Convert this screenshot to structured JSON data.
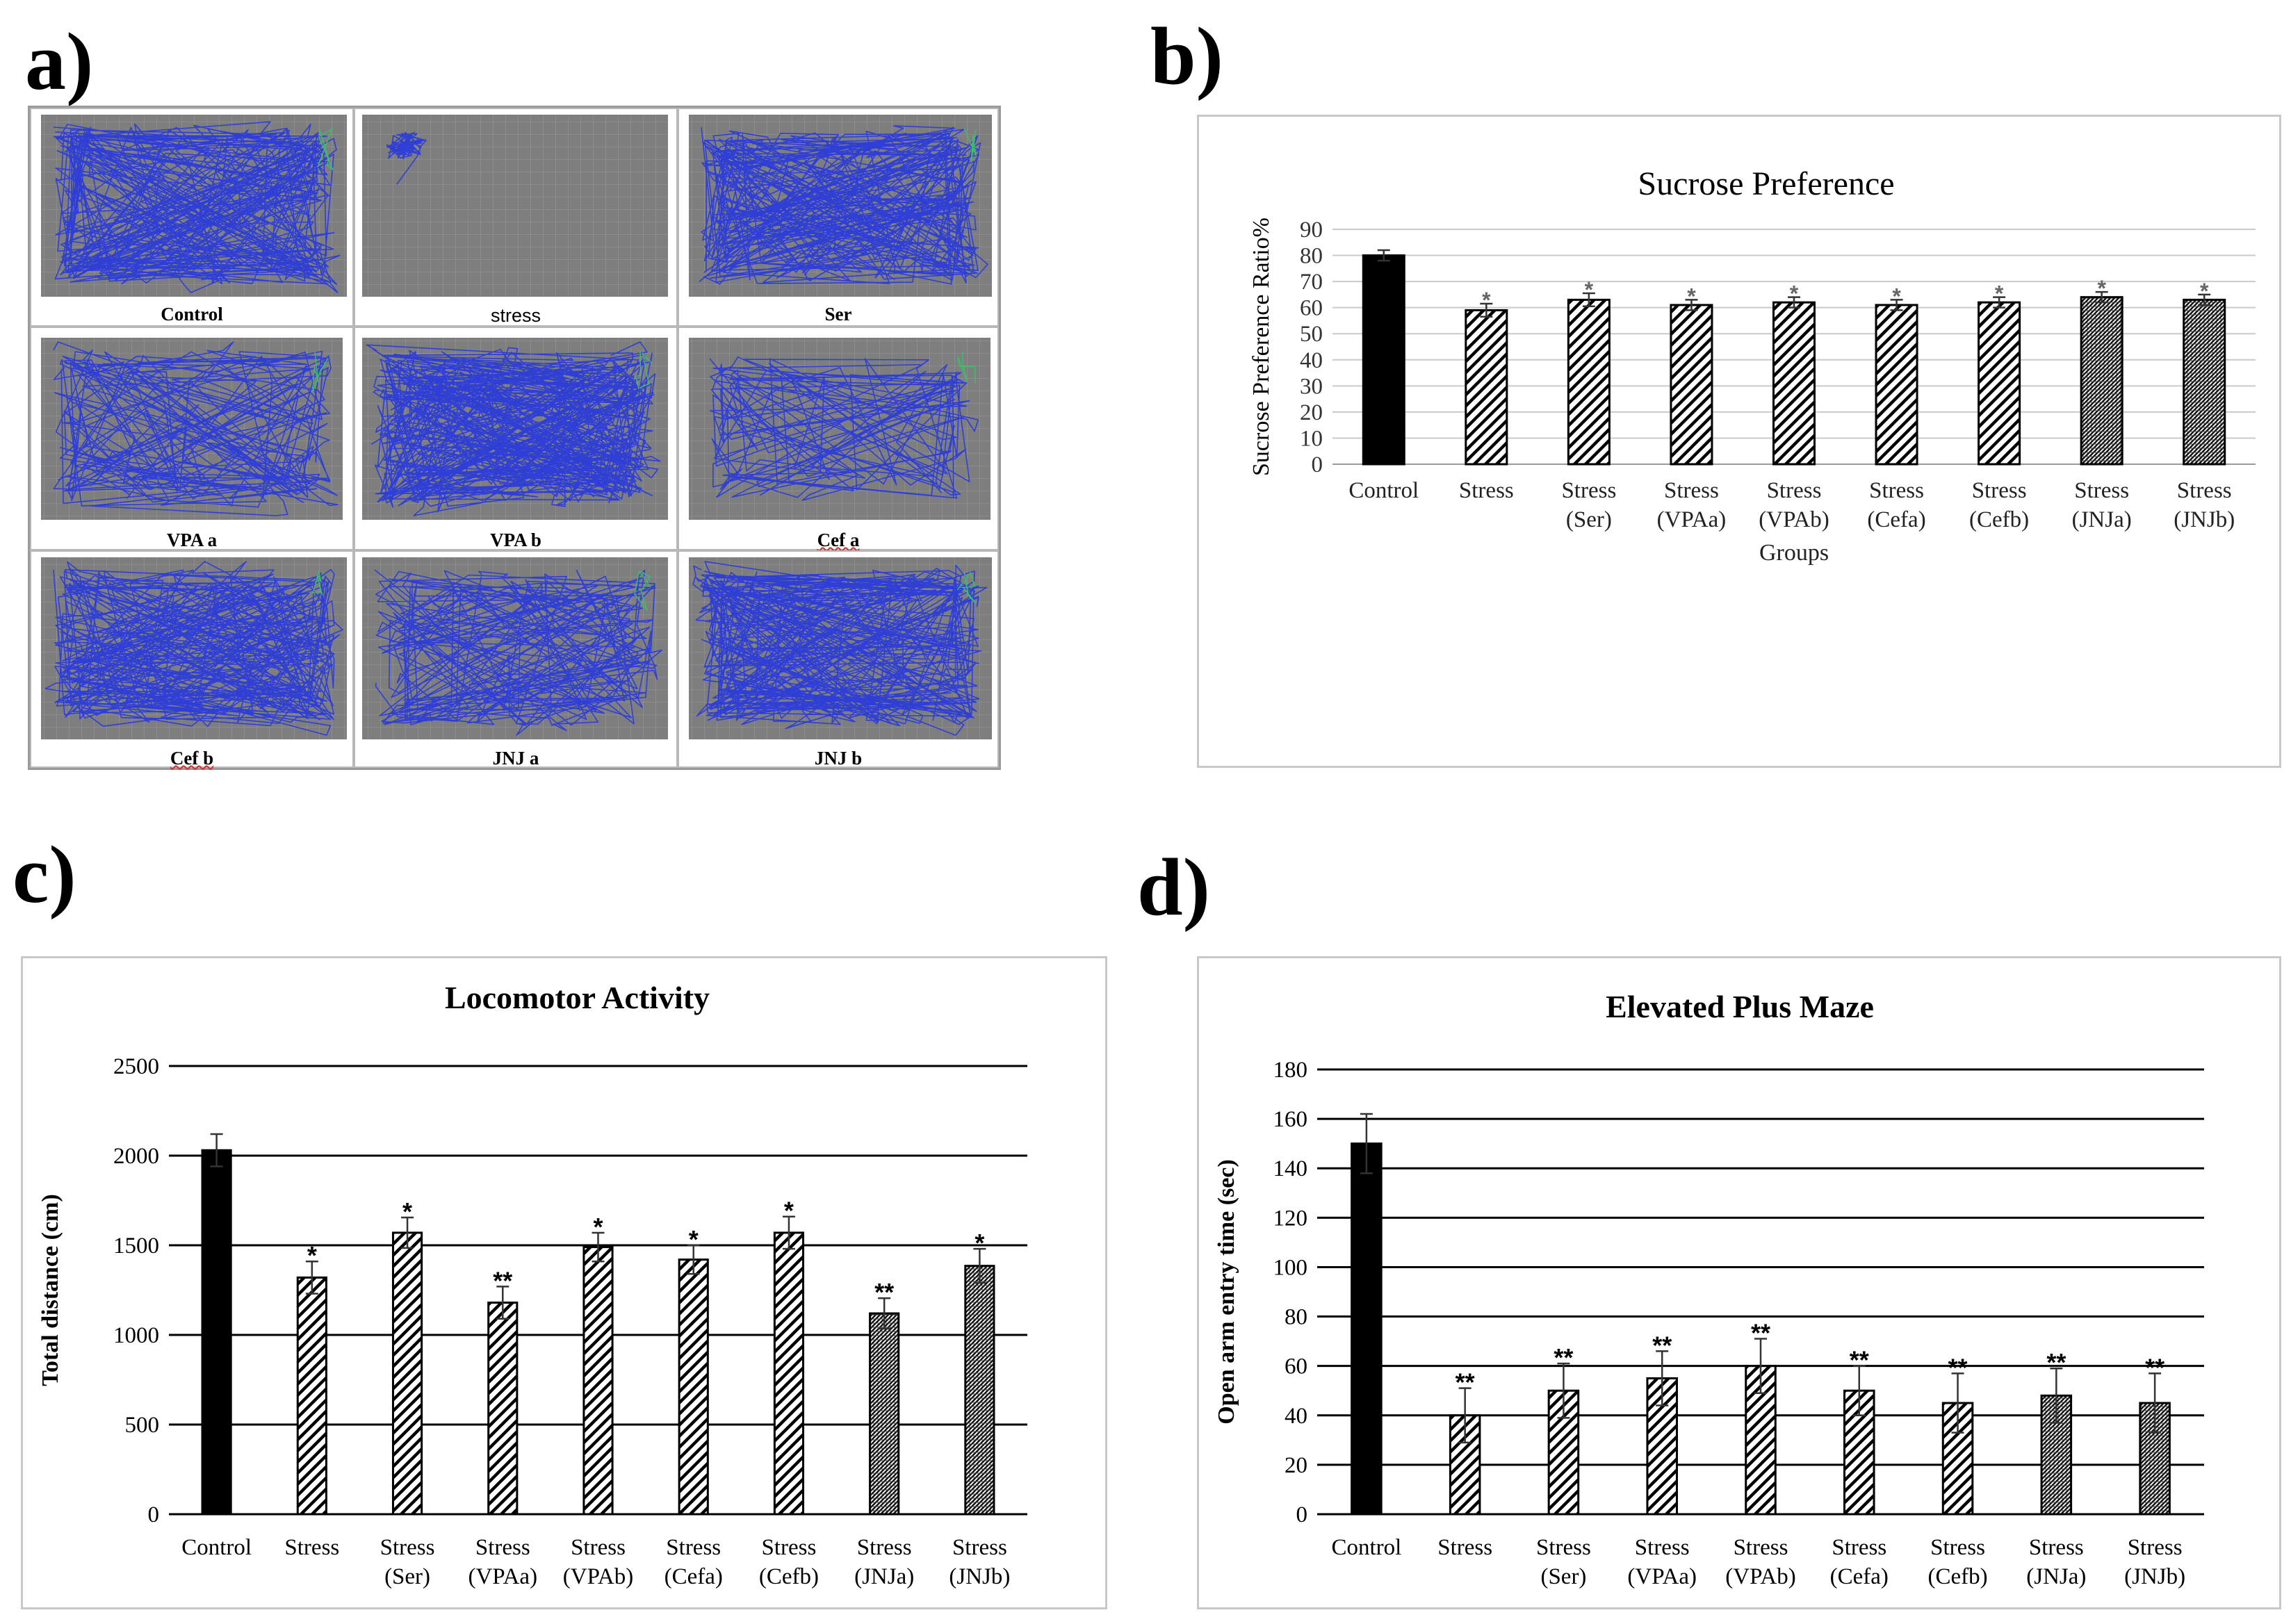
{
  "panel_letters": {
    "a": "a)",
    "b": "b)",
    "c": "c)",
    "d": "d)"
  },
  "tracking": {
    "labels": [
      "Control",
      "stress",
      "Ser",
      "VPA a",
      "VPA b",
      "Cef a",
      "Cef b",
      "JNJ a",
      "JNJ b"
    ],
    "colors": {
      "arena": "#7e7e7e",
      "path": "#2f3fd6",
      "grid_line": "#9a9a9a",
      "green_trace": "#3ac06a"
    }
  },
  "chart_data": [
    {
      "id": "sucrose",
      "type": "bar",
      "title": "Sucrose Preference",
      "xlabel": "Groups",
      "ylabel": "Sucrose Preference Ratio%",
      "ylim": [
        0,
        90
      ],
      "yticks": [
        0,
        10,
        20,
        30,
        40,
        50,
        60,
        70,
        80,
        90
      ],
      "categories": [
        [
          "Control"
        ],
        [
          "Stress"
        ],
        [
          "Stress",
          "(Ser)"
        ],
        [
          "Stress",
          "(VPAa)"
        ],
        [
          "Stress",
          "(VPAb)"
        ],
        [
          "Stress",
          "(Cefa)"
        ],
        [
          "Stress",
          "(Cefb)"
        ],
        [
          "Stress",
          "(JNJa)"
        ],
        [
          "Stress",
          "(JNJb)"
        ]
      ],
      "values": [
        80,
        59,
        63,
        61,
        62,
        61,
        62,
        64,
        63
      ],
      "errors": [
        2,
        2.5,
        2.5,
        2,
        2,
        2,
        2,
        2,
        2
      ],
      "significance": [
        "",
        "*",
        "*",
        "*",
        "*",
        "*",
        "*",
        "*",
        "*"
      ],
      "fills": [
        "solid",
        "hatch",
        "hatch",
        "hatch",
        "hatch",
        "hatch",
        "hatch",
        "dense",
        "dense"
      ],
      "grid": true
    },
    {
      "id": "locomotor",
      "type": "bar",
      "title": "Locomotor Activity",
      "xlabel": "",
      "ylabel": "Total distance (cm)",
      "ylim": [
        0,
        2500
      ],
      "yticks": [
        0,
        500,
        1000,
        1500,
        2000,
        2500
      ],
      "categories": [
        [
          "Control"
        ],
        [
          "Stress"
        ],
        [
          "Stress",
          "(Ser)"
        ],
        [
          "Stress",
          "(VPAa)"
        ],
        [
          "Stress",
          "(VPAb)"
        ],
        [
          "Stress",
          "(Cefa)"
        ],
        [
          "Stress",
          "(Cefb)"
        ],
        [
          "Stress",
          "(JNJa)"
        ],
        [
          "Stress",
          "(JNJb)"
        ]
      ],
      "values": [
        2030,
        1320,
        1570,
        1180,
        1490,
        1420,
        1570,
        1120,
        1385
      ],
      "errors": [
        90,
        90,
        85,
        90,
        80,
        80,
        90,
        85,
        95
      ],
      "significance": [
        "",
        "*",
        "*",
        "**",
        "*",
        "*",
        "*",
        "**",
        "*"
      ],
      "fills": [
        "solid",
        "hatch",
        "hatch",
        "hatch",
        "hatch",
        "hatch",
        "hatch",
        "dense",
        "dense"
      ],
      "grid": true
    },
    {
      "id": "epm",
      "type": "bar",
      "title": "Elevated Plus Maze",
      "xlabel": "",
      "ylabel": "Open arm entry time (sec)",
      "ylim": [
        0,
        180
      ],
      "yticks": [
        0,
        20,
        40,
        60,
        80,
        100,
        120,
        140,
        160,
        180
      ],
      "categories": [
        [
          "Control"
        ],
        [
          "Stress"
        ],
        [
          "Stress",
          "(Ser)"
        ],
        [
          "Stress",
          "(VPAa)"
        ],
        [
          "Stress",
          "(VPAb)"
        ],
        [
          "Stress",
          "(Cefa)"
        ],
        [
          "Stress",
          "(Cefb)"
        ],
        [
          "Stress",
          "(JNJa)"
        ],
        [
          "Stress",
          "(JNJb)"
        ]
      ],
      "values": [
        150,
        40,
        50,
        55,
        60,
        50,
        45,
        48,
        45
      ],
      "errors": [
        12,
        11,
        11,
        11,
        11,
        10,
        12,
        11,
        12
      ],
      "significance": [
        "",
        "**",
        "**",
        "**",
        "**",
        "**",
        "**",
        "**",
        "**"
      ],
      "fills": [
        "solid",
        "hatch",
        "hatch",
        "hatch",
        "hatch",
        "hatch",
        "hatch",
        "dense",
        "dense"
      ],
      "grid": true
    }
  ]
}
